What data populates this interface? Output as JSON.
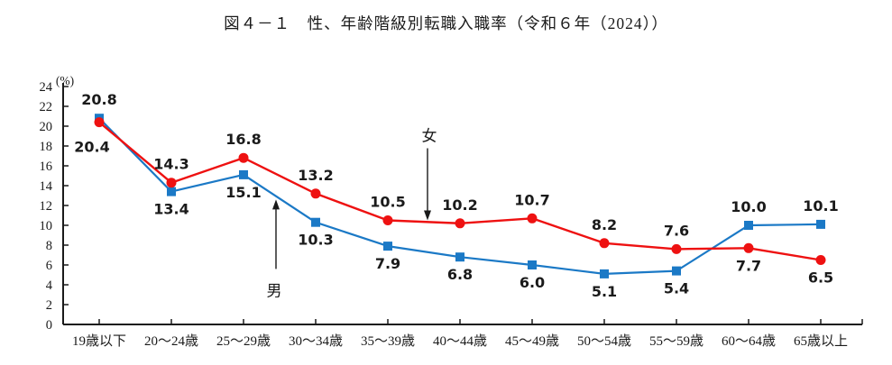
{
  "chart_data": {
    "type": "line",
    "title": "図４－１　性、年齢階級別転職入職率（令和６年（2024））",
    "unit_label": "(%)",
    "categories": [
      "19歳以下",
      "20～24歳",
      "25～29歳",
      "30～34歳",
      "35～39歳",
      "40～44歳",
      "45～49歳",
      "50～54歳",
      "55～59歳",
      "60～64歳",
      "65歳以上"
    ],
    "ylim": [
      0,
      24
    ],
    "ytick_step": 2,
    "grid": false,
    "legend": "inline-annotations",
    "series": [
      {
        "name": "男",
        "color": "#1b79c6",
        "marker": "square",
        "values": [
          20.8,
          13.4,
          15.1,
          10.3,
          7.9,
          6.8,
          6.0,
          5.1,
          5.4,
          10.0,
          10.1
        ],
        "label_pos": [
          "above",
          "below",
          "below",
          "below",
          "below",
          "below",
          "below",
          "below",
          "below",
          "above",
          "above"
        ]
      },
      {
        "name": "女",
        "color": "#ee1111",
        "marker": "circle",
        "values": [
          20.4,
          14.3,
          16.8,
          13.2,
          10.5,
          10.2,
          10.7,
          8.2,
          7.6,
          7.7,
          6.5
        ],
        "label_pos": [
          "below-left",
          "above",
          "above",
          "above",
          "above",
          "above",
          "above",
          "above",
          "above",
          "below",
          "below"
        ]
      }
    ],
    "annotations": [
      {
        "text": "女",
        "category_index": 4.55,
        "tip_value": 10.5,
        "direction": "down"
      },
      {
        "text": "男",
        "category_index": 2.45,
        "tip_value": 12.6,
        "direction": "up"
      }
    ],
    "axis_color": "#1a1a1a",
    "label_color": "#1a1a1a"
  }
}
